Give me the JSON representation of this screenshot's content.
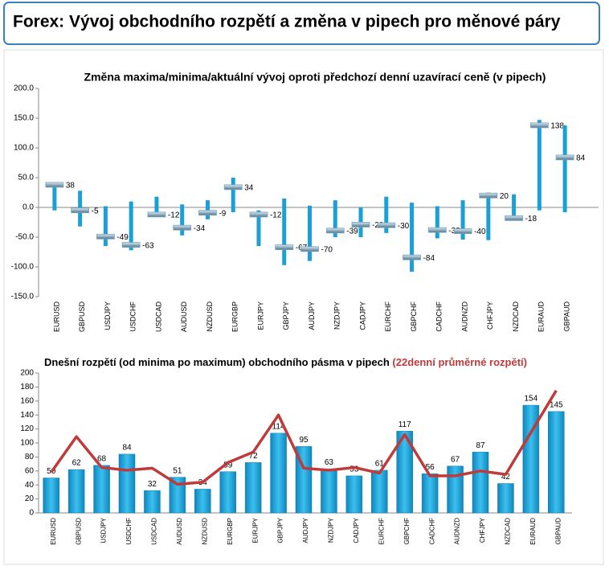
{
  "header": {
    "title": "Forex: Vývoj obchodního rozpětí a změna v pipech pro měnové páry"
  },
  "chart_data": [
    {
      "type": "range",
      "title": "Změna maxima/minima/aktuální vývoj oproti předchozí denní uzavírací ceně (v pipech)",
      "categories": [
        "EURUSD",
        "GBPUSD",
        "USDJPY",
        "USDCHF",
        "USDCAD",
        "AUDUSD",
        "NZDUSD",
        "EURGBP",
        "EURJPY",
        "GBPJPY",
        "AUDJPY",
        "NZDJPY",
        "CADJPY",
        "EURCHF",
        "GBPCHF",
        "CADCHF",
        "AUDNZD",
        "CHFJPY",
        "NZDCAD",
        "EURAUD",
        "GBPAUD"
      ],
      "high": [
        42,
        28,
        2,
        10,
        18,
        5,
        12,
        50,
        -5,
        15,
        3,
        12,
        0,
        18,
        8,
        2,
        12,
        25,
        22,
        147,
        138
      ],
      "low": [
        -5,
        -32,
        -65,
        -72,
        -15,
        -47,
        -20,
        -8,
        -65,
        -97,
        -90,
        -50,
        -50,
        -43,
        -108,
        -52,
        -54,
        -55,
        -20,
        -5,
        -8
      ],
      "current": [
        38,
        -5,
        -49,
        -63,
        -12,
        -34,
        -9,
        34,
        -12,
        -67,
        -70,
        -39,
        -29,
        -30,
        -84,
        -38,
        -40,
        20,
        -18,
        138,
        84
      ],
      "color": "#1a9fd6",
      "marker_color": "#7fa3b8",
      "ylim": [
        -150,
        200
      ],
      "yticks": [
        {
          "value": -150,
          "label": "-150.0"
        },
        {
          "value": -100,
          "label": "-100.0"
        },
        {
          "value": -50,
          "label": "-50.0"
        },
        {
          "value": 0,
          "label": "0.0"
        },
        {
          "value": 50,
          "label": "50.0"
        },
        {
          "value": 100,
          "label": "100.0"
        },
        {
          "value": 150,
          "label": "150.0"
        },
        {
          "value": 200,
          "label": "200.0"
        }
      ]
    },
    {
      "type": "bar-line",
      "title": "Dnešní rozpětí (od minima po maximum) obchodního pásma v pipech",
      "categories": [
        "EURUSD",
        "GBPUSD",
        "USDJPY",
        "USDCHF",
        "USDCAD",
        "AUDUSD",
        "NZDUSD",
        "EURGBP",
        "EURJPY",
        "GBPJPY",
        "AUDJPY",
        "NZDJPY",
        "CADJPY",
        "EURCHF",
        "GBPCHF",
        "CADCHF",
        "AUDNZD",
        "CHFJPY",
        "NZDCAD",
        "EURAUD",
        "GBPAUD"
      ],
      "values": [
        50,
        62,
        68,
        84,
        32,
        51,
        34,
        59,
        72,
        114,
        95,
        63,
        53,
        61,
        117,
        56,
        67,
        87,
        42,
        154,
        145
      ],
      "color": "#1aa3d9",
      "line": {
        "name": "(22denní průměrné rozpětí)",
        "color": "#c0393b",
        "values": [
          58,
          109,
          65,
          61,
          64,
          41,
          44,
          72,
          87,
          140,
          64,
          61,
          65,
          57,
          112,
          53,
          53,
          60,
          55,
          115,
          175
        ]
      },
      "ylim": [
        0,
        200
      ],
      "yticks": [
        0,
        20,
        40,
        60,
        80,
        100,
        120,
        140,
        160,
        180,
        200
      ]
    }
  ]
}
